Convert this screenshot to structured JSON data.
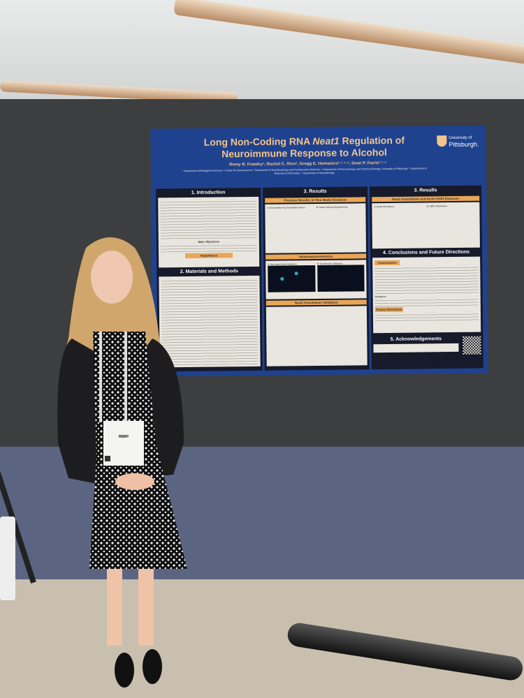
{
  "poster": {
    "title_part1": "Long Non-Coding RNA ",
    "title_italic": "Neat1",
    "title_part2": " Regulation of Neuroimmune Response to Alcohol",
    "authors": "Remy R. Frawley¹, Rachel C. Rice², Gregg E. Homanics²˒³˒⁴˒⁵, Sean P. Farris²˒³˒⁴",
    "affiliations": "¹ Department of Biological Sciences; ² Center for Neuroscience; ³ Department of Anesthesiology and Perioperative Medicine; ⁴ Department of Pharmacology and Chemical Biology, University of Pittsburgh; ⁵ Department of Biomedical Informatics; ⁶ Department of Neurobiology",
    "logo_line1": "University of",
    "logo_line2": "Pittsburgh.",
    "sections": {
      "intro": "1. Introduction",
      "main_objectives": "Main Objectives",
      "hypothesis": "Hypothesis",
      "methods": "2. Materials and Methods",
      "results1": "3. Results",
      "previous_results": "Previous Results: In Vivo Neat1 Knockout",
      "two_bottle": "A. Every-Other-Day Two Bottle Choice",
      "hypothermia": "B. Stress Induced Hypothermia",
      "icc": "Immunocytochemistry",
      "microglia_purity": "A. Microglia Purity Validation",
      "transfection": "B. Transfection Validation",
      "knockdown_validation": "Neat1 Knockdown Validation",
      "results2": "3. Results",
      "knockdown_etoh": "Neat1 Knockdown and Acute EtOH Exposure",
      "neat1_abundance": "A. Neat1 Abundance",
      "tgfb1_abundance": "B. Tgfb1 Abundance",
      "conclusions": "4. Conclusions and Future Directions",
      "conclusions_label": "Conclusions",
      "limitations_label": "Limitations",
      "future_label": "Future Directions",
      "acknowledgements": "5. Acknowledgements"
    }
  },
  "badge": {
    "name": "REMY"
  },
  "colors": {
    "poster_blue": "#1f428f",
    "poster_accent": "#e8a656",
    "wall": "#3d3e3f",
    "carpet": "#5b6582"
  }
}
